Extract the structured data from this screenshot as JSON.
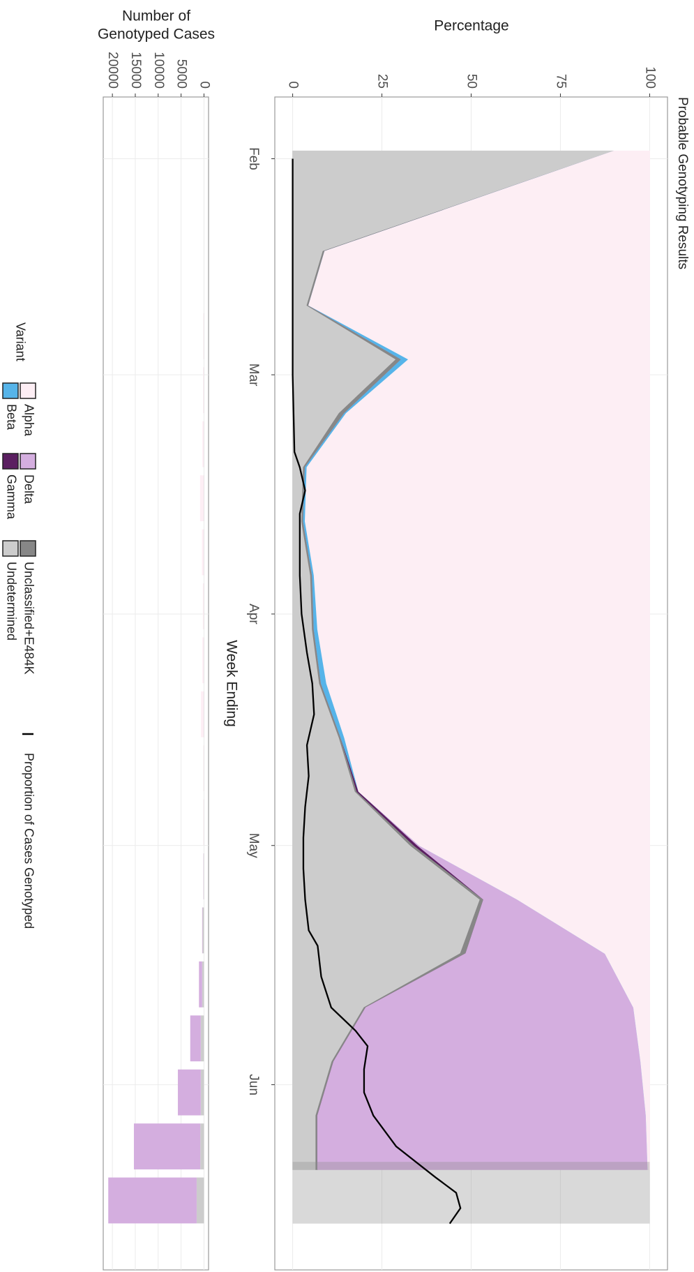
{
  "chart_data": [
    {
      "type": "area",
      "title": "Probable Genotyping Results",
      "xlabel": "Week Ending",
      "ylabel": "Percentage",
      "legend_title": "Variant",
      "xlim": [
        24,
        176
      ],
      "xticks": [
        {
          "value": 32,
          "label": "Feb"
        },
        {
          "value": 60,
          "label": "Mar"
        },
        {
          "value": 91,
          "label": "Apr"
        },
        {
          "value": 121,
          "label": "May"
        },
        {
          "value": 152,
          "label": "Jun"
        }
      ],
      "ylim": [
        -5,
        105
      ],
      "yticks": [
        0,
        25,
        50,
        75,
        100
      ],
      "grid": true,
      "x": [
        31,
        44,
        51,
        58,
        65,
        72,
        79,
        86,
        93,
        100,
        107,
        114,
        121,
        128,
        135,
        142,
        149,
        156,
        163
      ],
      "series": [
        {
          "name": "Alpha",
          "color": "#fdeef4",
          "values": [
            10,
            91,
            95.5,
            67.5,
            85,
            96,
            96.5,
            94,
            93,
            90.5,
            85.5,
            81.5,
            64.5,
            37,
            12.5,
            4.5,
            2.5,
            1,
            0.5
          ]
        },
        {
          "name": "Beta",
          "color": "#56b4e9",
          "values": [
            0,
            0,
            0,
            2,
            0.5,
            0.5,
            0.5,
            0.5,
            1,
            1.5,
            1,
            0,
            0,
            0,
            0,
            0,
            0,
            0,
            0
          ]
        },
        {
          "name": "Delta",
          "color": "#d4aedf",
          "values": [
            0,
            0,
            0,
            0,
            0,
            0,
            0,
            0,
            0,
            0,
            0,
            0,
            0.5,
            9.5,
            39,
            75,
            86,
            92,
            92.5
          ]
        },
        {
          "name": "Gamma",
          "color": "#5b1f61",
          "values": [
            0,
            0,
            0,
            0,
            0,
            0,
            0,
            0,
            0,
            0,
            0,
            0.5,
            1,
            0,
            0,
            0,
            0,
            0,
            0
          ]
        },
        {
          "name": "Unclassified+E484K",
          "color": "#878787",
          "values": [
            0,
            0.5,
            0.5,
            1.5,
            1.5,
            0.5,
            0.5,
            0.5,
            0.5,
            0.5,
            0.5,
            0.5,
            1,
            1,
            1.5,
            0.5,
            0.5,
            0.5,
            0.5
          ]
        },
        {
          "name": "Undetermined",
          "color": "#cccccc",
          "values": [
            90,
            8.5,
            4,
            29,
            13,
            3,
            2.5,
            5,
            5.5,
            7.5,
            13,
            17.5,
            33,
            52.5,
            47,
            20,
            11,
            6.5,
            6.5
          ]
        }
      ],
      "line": {
        "name": "Proportion of Cases Genotyped",
        "color": "#000000",
        "x": [
          32,
          60,
          70,
          72,
          75,
          78,
          82,
          86,
          91,
          96,
          100,
          104,
          108,
          112,
          116,
          120,
          124,
          128,
          132,
          134,
          138,
          142,
          145,
          147,
          150,
          153,
          156,
          160,
          164,
          166,
          168,
          170
        ],
        "values": [
          0,
          0,
          0.5,
          2,
          3.5,
          2,
          2,
          2,
          2.5,
          4,
          5.5,
          6,
          4,
          4.5,
          3.5,
          3,
          3,
          3.5,
          4.5,
          7,
          8,
          10.8,
          17.6,
          21,
          20,
          20,
          22.6,
          29,
          40,
          45.8,
          47,
          44
        ]
      },
      "shade": [
        162,
        170
      ]
    },
    {
      "type": "bar",
      "ylabel": [
        "Number of",
        "Genotyped Cases"
      ],
      "ylim": [
        -1000,
        22000
      ],
      "yticks": [
        0,
        5000,
        10000,
        15000,
        20000
      ],
      "reversed": true,
      "x": [
        41,
        48,
        55,
        62,
        69,
        76,
        83,
        90,
        97,
        104,
        111,
        118,
        125,
        132,
        139,
        146,
        153,
        160,
        167
      ],
      "series": [
        {
          "values": [
            0,
            0,
            100,
            150,
            300,
            800,
            400,
            200,
            300,
            600,
            100,
            100,
            50,
            30,
            20,
            10,
            10,
            0,
            0
          ]
        },
        {
          "values": [
            0,
            0,
            0,
            0,
            0,
            0,
            0,
            0,
            0,
            0,
            0,
            0,
            0,
            0,
            0,
            0,
            0,
            0,
            0
          ]
        },
        {
          "values": [
            0,
            0,
            0,
            0,
            0,
            0,
            0,
            0,
            0,
            0,
            0,
            0,
            30,
            100,
            700,
            2300,
            5000,
            14500,
            19300
          ]
        },
        {
          "values": [
            0,
            0,
            0,
            0,
            0,
            0,
            0,
            0,
            0,
            0,
            0,
            0,
            0,
            0,
            0,
            0,
            0,
            0,
            0
          ]
        },
        {
          "values": [
            0,
            0,
            0,
            0,
            0,
            0,
            0,
            0,
            0,
            0,
            0,
            0,
            0,
            0,
            0,
            0,
            0,
            0,
            0
          ]
        },
        {
          "values": [
            0,
            0,
            50,
            50,
            50,
            50,
            50,
            50,
            50,
            50,
            50,
            50,
            100,
            300,
            400,
            700,
            700,
            800,
            1600
          ]
        }
      ]
    }
  ]
}
